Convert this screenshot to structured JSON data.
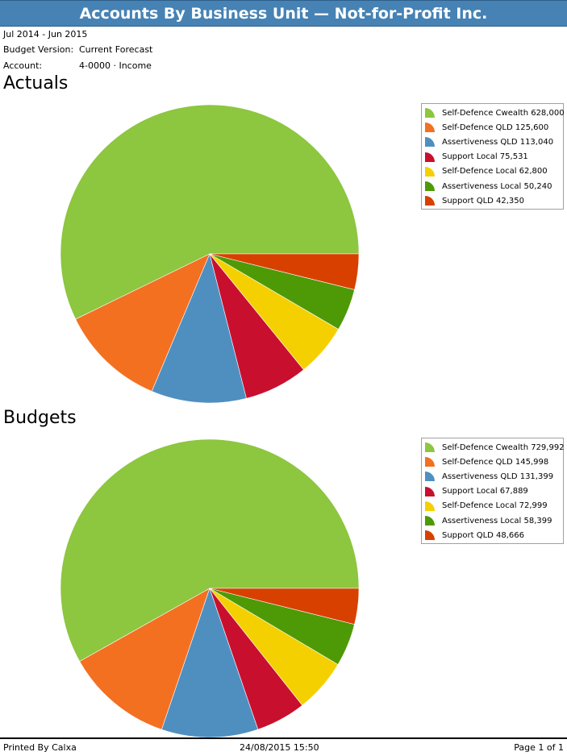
{
  "report": {
    "title": "Accounts By Business Unit — Not-for-Profit Inc.",
    "period": "Jul 2014 - Jun 2015",
    "budget_version_label": "Budget Version:",
    "budget_version_value": "Current Forecast",
    "account_label": "Account:",
    "account_value": "4-0000 · Income"
  },
  "sections": {
    "actuals_title": "Actuals",
    "budgets_title": "Budgets"
  },
  "colors": {
    "title_bar": "#4682b4",
    "slices": [
      "#8dc63f",
      "#f37021",
      "#4f8fc0",
      "#c8102e",
      "#f5d000",
      "#4e9a06",
      "#d84000"
    ]
  },
  "chart_data": [
    {
      "type": "pie",
      "title": "Actuals",
      "legend_position": "top-right",
      "categories": [
        "Self-Defence Cwealth",
        "Self-Defence QLD",
        "Assertiveness QLD",
        "Support Local",
        "Self-Defence Local",
        "Assertiveness Local",
        "Support QLD"
      ],
      "values": [
        628000,
        125600,
        113040,
        75531,
        62800,
        50240,
        42350
      ],
      "labels": [
        "628,000",
        "125,600",
        "113,040",
        "75,531",
        "62,800",
        "50,240",
        "42,350"
      ]
    },
    {
      "type": "pie",
      "title": "Budgets",
      "legend_position": "top-right",
      "categories": [
        "Self-Defence Cwealth",
        "Self-Defence QLD",
        "Assertiveness QLD",
        "Support Local",
        "Self-Defence Local",
        "Assertiveness Local",
        "Support QLD"
      ],
      "values": [
        729992,
        145998,
        131399,
        67889,
        72999,
        58399,
        48666
      ],
      "labels": [
        "729,992",
        "145,998",
        "131,399",
        "67,889",
        "72,999",
        "58,399",
        "48,666"
      ]
    }
  ],
  "footer": {
    "printed_by": "Printed By Calxa",
    "printed_at": "24/08/2015 15:50",
    "page": "Page 1 of 1"
  }
}
